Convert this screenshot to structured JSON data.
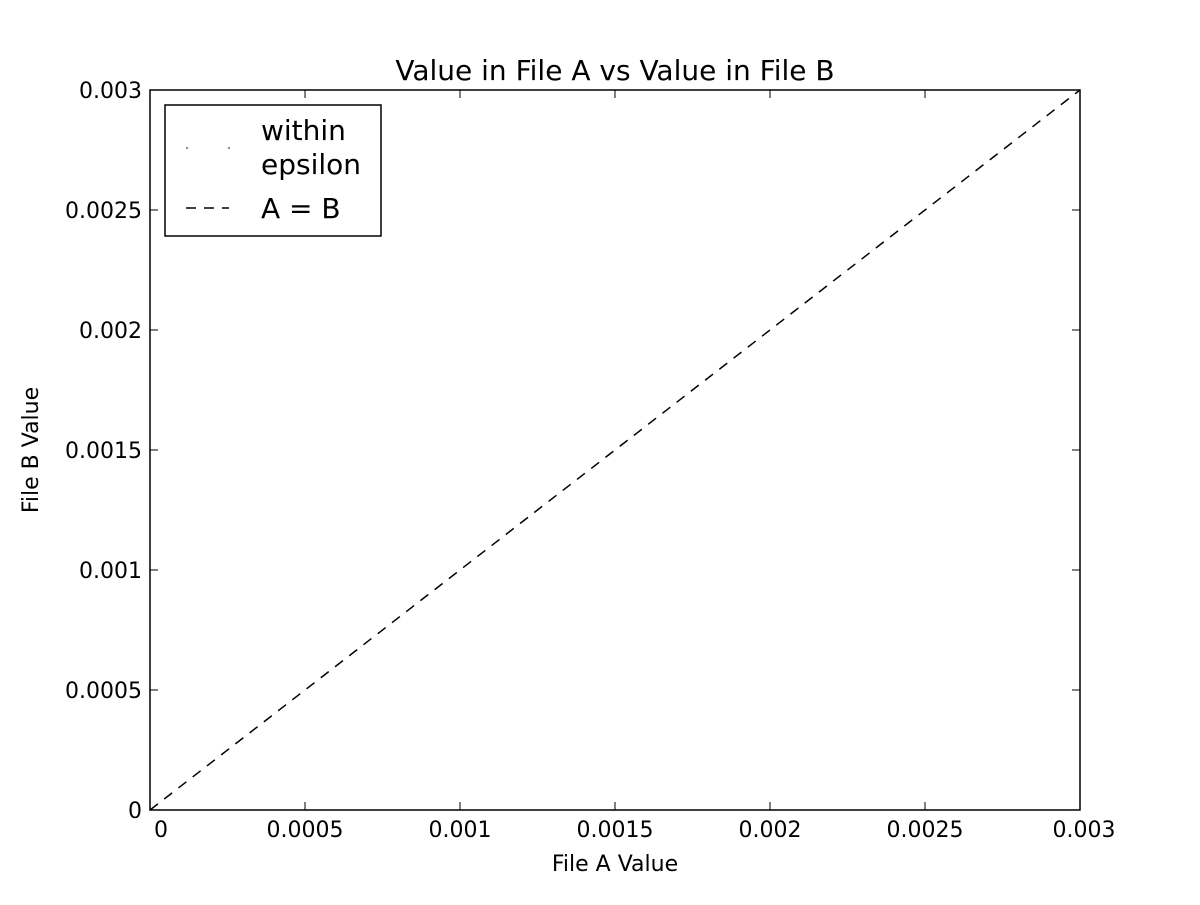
{
  "chart_data": {
    "type": "line",
    "title": "Value in File A vs Value in File B",
    "xlabel": "File A Value",
    "ylabel": "File B Value",
    "xlim": [
      0,
      0.003
    ],
    "ylim": [
      0,
      0.003
    ],
    "x_ticks": [
      0,
      0.0005,
      0.001,
      0.0015,
      0.002,
      0.0025,
      0.003
    ],
    "x_tick_labels": [
      "0",
      "0.0005",
      "0.001",
      "0.0015",
      "0.002",
      "0.0025",
      "0.003"
    ],
    "y_ticks": [
      0,
      0.0005,
      0.001,
      0.0015,
      0.002,
      0.0025,
      0.003
    ],
    "y_tick_labels": [
      "0",
      "0.0005",
      "0.001",
      "0.0015",
      "0.002",
      "0.0025",
      "0.003"
    ],
    "grid": false,
    "legend_position": "top-left",
    "series": [
      {
        "name": "within epsilon",
        "name_lines": [
          "within",
          "epsilon"
        ],
        "style": "points",
        "color": "#000000",
        "points": []
      },
      {
        "name": "A = B",
        "style": "dashed",
        "color": "#000000",
        "x": [
          0,
          0.003
        ],
        "y": [
          0,
          0.003
        ]
      }
    ]
  }
}
